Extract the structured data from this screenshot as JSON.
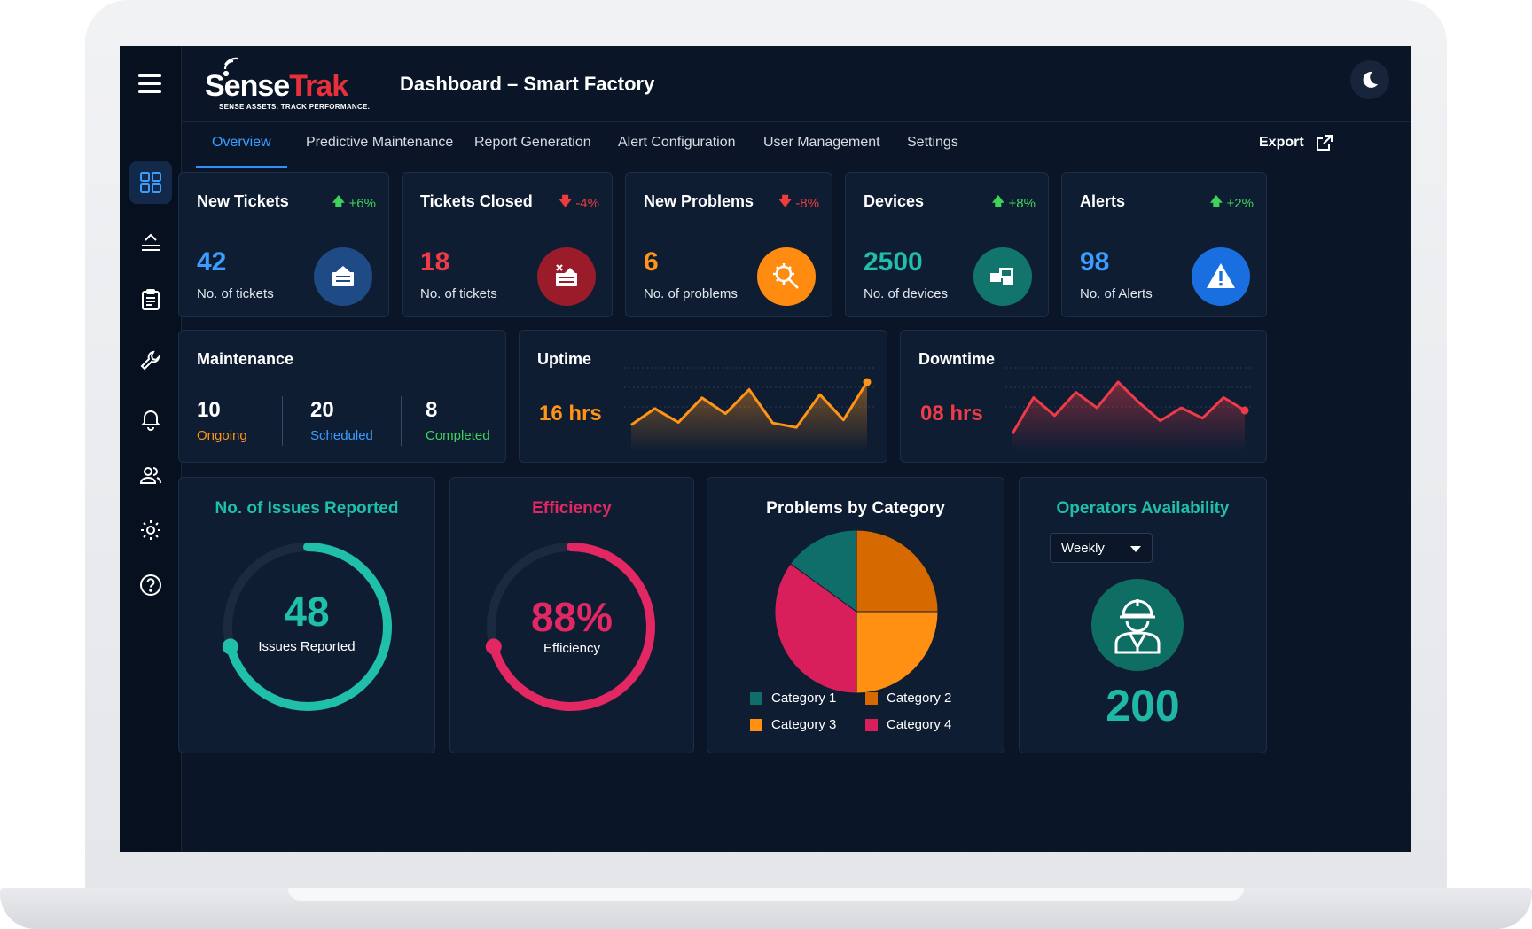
{
  "app": {
    "logo_primary": "Sense",
    "logo_accent": "Trak",
    "logo_tagline": "SENSE ASSETS. TRACK PERFORMANCE.",
    "page_title": "Dashboard – Smart Factory"
  },
  "sidebar": {
    "items": [
      {
        "name": "dashboard-icon",
        "active": true
      },
      {
        "name": "upload-icon"
      },
      {
        "name": "clipboard-icon"
      },
      {
        "name": "wrench-icon"
      },
      {
        "name": "bell-icon"
      },
      {
        "name": "users-icon"
      },
      {
        "name": "gear-icon"
      },
      {
        "name": "help-icon"
      }
    ]
  },
  "tabs": [
    {
      "label": "Overview",
      "active": true
    },
    {
      "label": "Predictive Maintenance"
    },
    {
      "label": "Report Generation"
    },
    {
      "label": "Alert Configuration"
    },
    {
      "label": "User Management"
    },
    {
      "label": "Settings"
    }
  ],
  "export_label": "Export",
  "stats": [
    {
      "title": "New Tickets",
      "change": "+6%",
      "direction": "up",
      "value": "42",
      "sub": "No. of tickets",
      "value_color": "#3b9dff",
      "icon_bg": "#1e4a86",
      "icon": "ticket-icon"
    },
    {
      "title": "Tickets Closed",
      "change": "-4%",
      "direction": "down",
      "value": "18",
      "sub": "No. of tickets",
      "value_color": "#ee3b47",
      "icon_bg": "#9a1b2a",
      "icon": "ticket-closed-icon"
    },
    {
      "title": "New Problems",
      "change": "-8%",
      "direction": "down",
      "value": "6",
      "sub": "No. of problems",
      "value_color": "#ff9417",
      "icon_bg": "#ff8c10",
      "icon": "problem-search-icon"
    },
    {
      "title": "Devices",
      "change": "+8%",
      "direction": "up",
      "value": "2500",
      "sub": "No. of devices",
      "value_color": "#1fbfa9",
      "icon_bg": "#12756b",
      "icon": "devices-icon"
    },
    {
      "title": "Alerts",
      "change": "+2%",
      "direction": "up",
      "value": "98",
      "sub": "No. of Alerts",
      "value_color": "#3b9dff",
      "icon_bg": "#1a6fe0",
      "icon": "alert-triangle-icon"
    }
  ],
  "maintenance": {
    "title": "Maintenance",
    "items": [
      {
        "value": "10",
        "label": "Ongoing",
        "color": "#ff9417"
      },
      {
        "value": "20",
        "label": "Scheduled",
        "color": "#3b9dff"
      },
      {
        "value": "8",
        "label": "Completed",
        "color": "#3fd35b"
      }
    ]
  },
  "uptime": {
    "title": "Uptime",
    "value": "16 hrs",
    "color": "#ff9417",
    "series": [
      22,
      48,
      26,
      65,
      40,
      78,
      25,
      18,
      70,
      30,
      90
    ]
  },
  "downtime": {
    "title": "Downtime",
    "value": "08 hrs",
    "color": "#ee3b47",
    "series": [
      10,
      80,
      45,
      90,
      60,
      110,
      70,
      35,
      60,
      40,
      80,
      55
    ]
  },
  "issues": {
    "title": "No. of Issues Reported",
    "value": "48",
    "label": "Issues Reported",
    "color": "#1fbfa9",
    "fraction": 0.62
  },
  "efficiency": {
    "title": "Efficiency",
    "value": "88%",
    "label": "Efficiency",
    "color": "#e22762",
    "fraction": 0.62
  },
  "problems_by_category": {
    "title": "Problems by Category",
    "chart_data": {
      "type": "pie",
      "categories": [
        "Category 1",
        "Category 2",
        "Category 3",
        "Category 4"
      ],
      "values": [
        15,
        25,
        25,
        35
      ],
      "colors": [
        "#0f6e6a",
        "#d66a00",
        "#ff9012",
        "#d91f5b"
      ]
    }
  },
  "operators": {
    "title": "Operators Availability",
    "period": "Weekly",
    "count": "200"
  }
}
